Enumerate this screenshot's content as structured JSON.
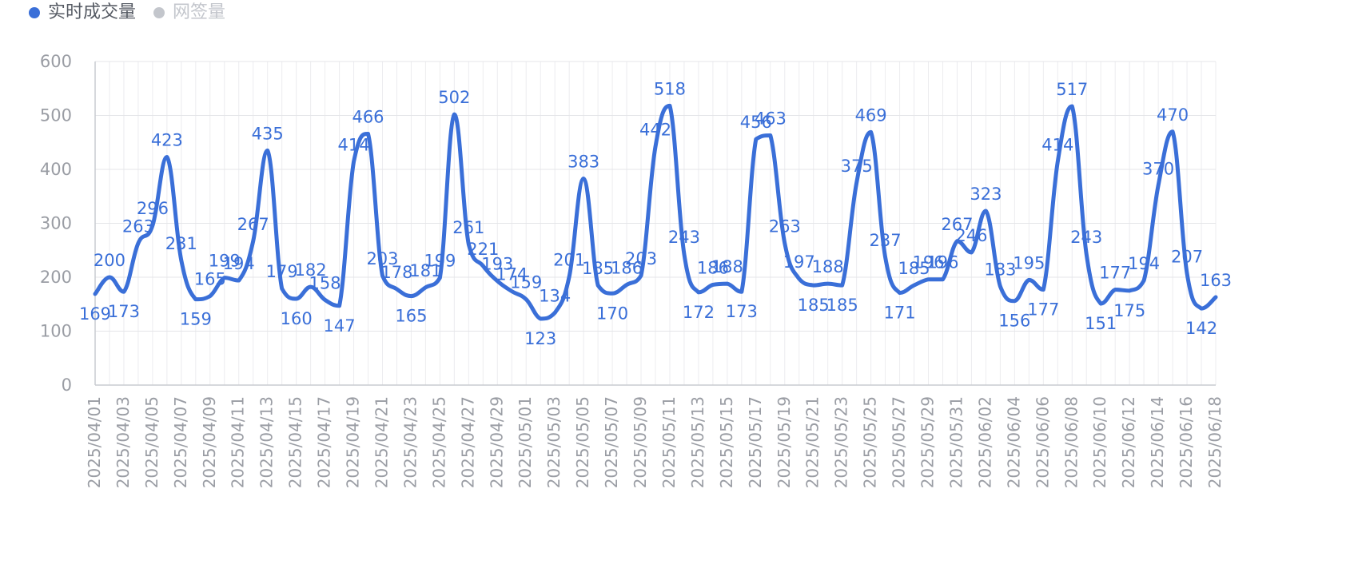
{
  "legend": [
    {
      "label": "实时成交量",
      "color": "#3a6fd8",
      "active": true
    },
    {
      "label": "网签量",
      "color": "#c3c6cc",
      "active": false
    }
  ],
  "chart_data": {
    "type": "line",
    "ylim": [
      0,
      600
    ],
    "yticks": [
      0,
      100,
      200,
      300,
      400,
      500,
      600
    ],
    "grid": true,
    "legend_position": "top-left",
    "x": [
      "2025/04/01",
      "2025/04/02",
      "2025/04/03",
      "2025/04/04",
      "2025/04/05",
      "2025/04/06",
      "2025/04/07",
      "2025/04/08",
      "2025/04/09",
      "2025/04/10",
      "2025/04/11",
      "2025/04/12",
      "2025/04/13",
      "2025/04/14",
      "2025/04/15",
      "2025/04/16",
      "2025/04/17",
      "2025/04/18",
      "2025/04/19",
      "2025/04/20",
      "2025/04/21",
      "2025/04/22",
      "2025/04/23",
      "2025/04/24",
      "2025/04/25",
      "2025/04/26",
      "2025/04/27",
      "2025/04/28",
      "2025/04/29",
      "2025/04/30",
      "2025/05/01",
      "2025/05/02",
      "2025/05/03",
      "2025/05/04",
      "2025/05/05",
      "2025/05/06",
      "2025/05/07",
      "2025/05/08",
      "2025/05/09",
      "2025/05/10",
      "2025/05/11",
      "2025/05/12",
      "2025/05/13",
      "2025/05/14",
      "2025/05/15",
      "2025/05/16",
      "2025/05/17",
      "2025/05/18",
      "2025/05/19",
      "2025/05/20",
      "2025/05/21",
      "2025/05/22",
      "2025/05/23",
      "2025/05/24",
      "2025/05/25",
      "2025/05/26",
      "2025/05/27",
      "2025/05/28",
      "2025/05/29",
      "2025/05/30",
      "2025/05/31",
      "2025/06/01",
      "2025/06/02",
      "2025/06/03",
      "2025/06/04",
      "2025/06/05",
      "2025/06/06",
      "2025/06/07",
      "2025/06/08",
      "2025/06/09",
      "2025/06/10",
      "2025/06/11",
      "2025/06/12",
      "2025/06/13",
      "2025/06/14",
      "2025/06/15",
      "2025/06/16",
      "2025/06/17",
      "2025/06/18"
    ],
    "xtick_labels": [
      "2025/04/01",
      "2025/04/03",
      "2025/04/05",
      "2025/04/07",
      "2025/04/09",
      "2025/04/11",
      "2025/04/13",
      "2025/04/15",
      "2025/04/17",
      "2025/04/19",
      "2025/04/21",
      "2025/04/23",
      "2025/04/25",
      "2025/04/27",
      "2025/04/29",
      "2025/05/01",
      "2025/05/03",
      "2025/05/05",
      "2025/05/07",
      "2025/05/09",
      "2025/05/11",
      "2025/05/13",
      "2025/05/15",
      "2025/05/17",
      "2025/05/19",
      "2025/05/21",
      "2025/05/23",
      "2025/05/25",
      "2025/05/27",
      "2025/05/29",
      "2025/05/31",
      "2025/06/02",
      "2025/06/04",
      "2025/06/06",
      "2025/06/08",
      "2025/06/10",
      "2025/06/12",
      "2025/06/14",
      "2025/06/16",
      "2025/06/18"
    ],
    "series": [
      {
        "name": "实时成交量",
        "color": "#3a6fd8",
        "values": [
          169,
          200,
          173,
          263,
          296,
          423,
          231,
          159,
          165,
          199,
          194,
          267,
          435,
          179,
          160,
          182,
          158,
          147,
          414,
          466,
          203,
          178,
          165,
          181,
          199,
          502,
          261,
          221,
          193,
          174,
          159,
          123,
          134,
          201,
          383,
          185,
          170,
          186,
          203,
          442,
          518,
          243,
          172,
          186,
          188,
          173,
          456,
          463,
          263,
          197,
          185,
          188,
          185,
          375,
          469,
          237,
          171,
          185,
          196,
          196,
          267,
          246,
          323,
          183,
          156,
          195,
          177,
          414,
          517,
          243,
          151,
          177,
          175,
          194,
          370,
          470,
          207,
          142,
          163
        ]
      }
    ]
  }
}
